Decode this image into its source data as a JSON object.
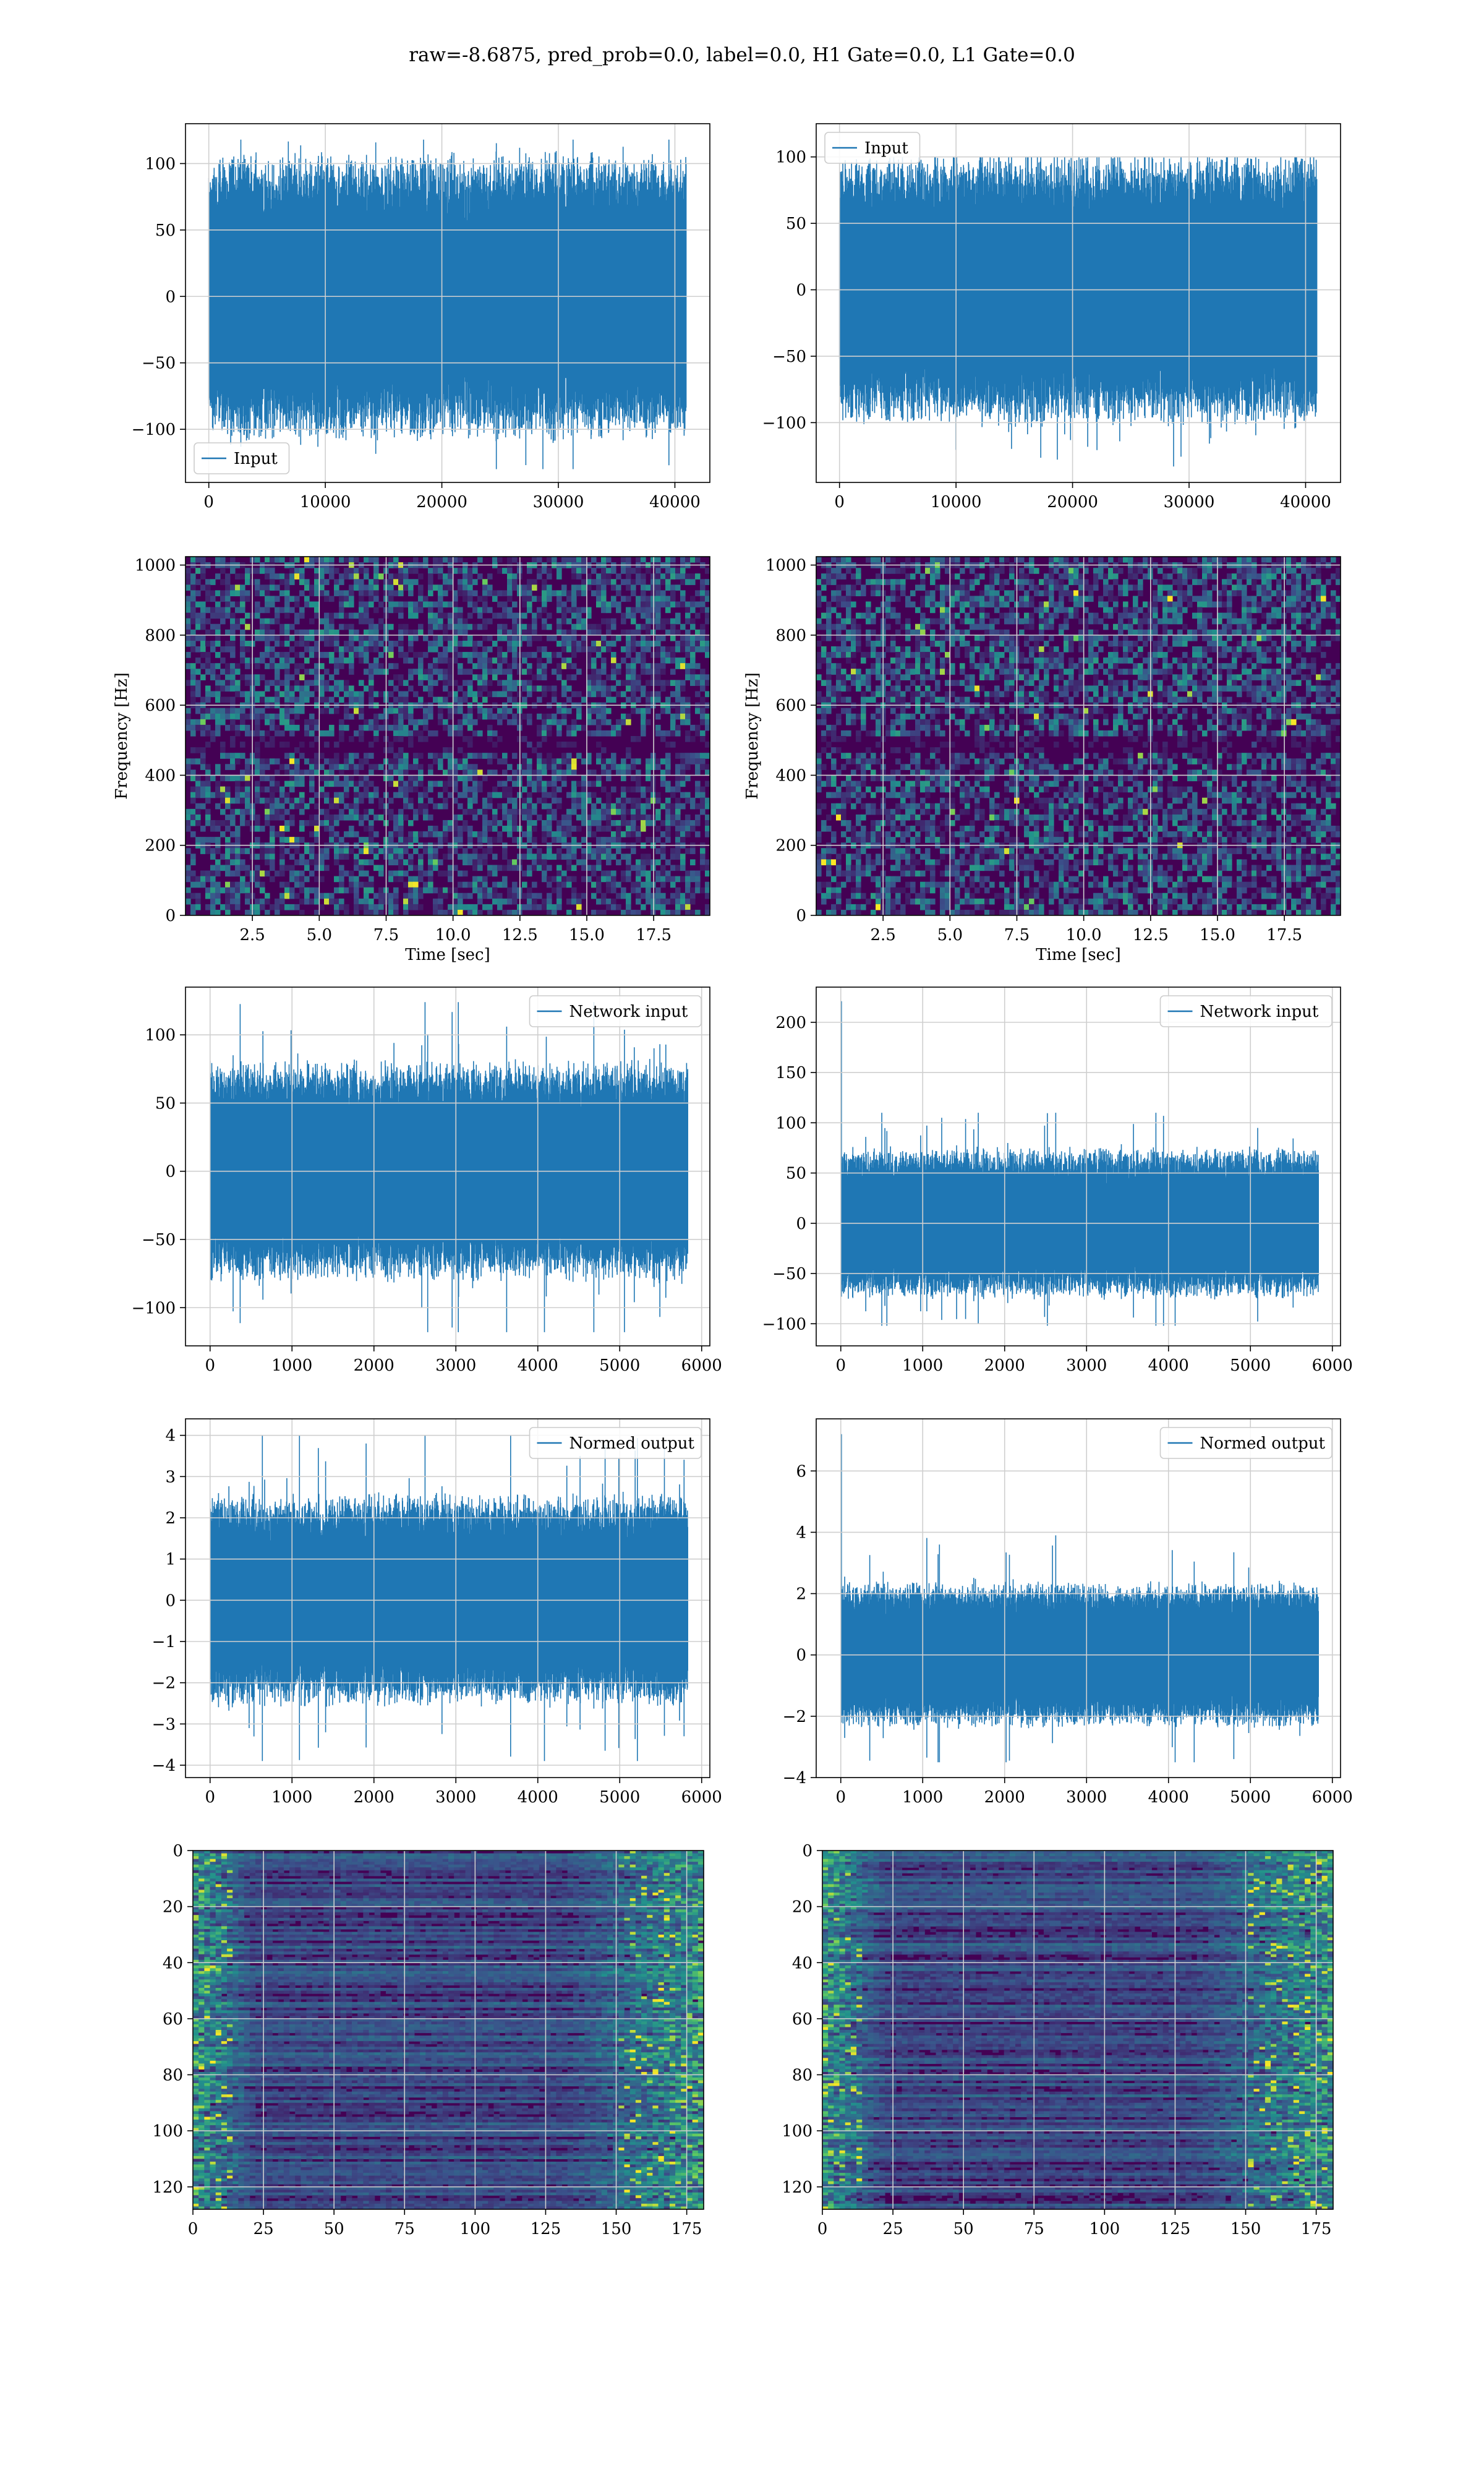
{
  "figure": {
    "title": "raw=-8.6875, pred_prob=0.0, label=0.0, H1 Gate=0.0, L1 Gate=0.0"
  },
  "colors": {
    "line": "#1f77b4",
    "grid": "#cfcfcf",
    "axes": "#000000",
    "viridis_dark": "#440154",
    "viridis_mid": "#21918c",
    "viridis_bright": "#fde725"
  },
  "chart_data": [
    {
      "id": "left-input",
      "type": "line",
      "title": "",
      "xlabel": "",
      "ylabel": "",
      "xlim": [
        -2000,
        43000
      ],
      "ylim": [
        -140,
        130
      ],
      "xticks": [
        0,
        10000,
        20000,
        30000,
        40000
      ],
      "yticks": [
        -100,
        -50,
        0,
        50,
        100
      ],
      "legend": {
        "label": "Input",
        "position": "lower-left"
      },
      "series": {
        "n": 40960,
        "x_start": 0,
        "x_end": 40960,
        "envelope": 100,
        "peak_max": 118,
        "peak_min": -130,
        "start_spike": null
      }
    },
    {
      "id": "right-input",
      "type": "line",
      "title": "",
      "xlabel": "",
      "ylabel": "",
      "xlim": [
        -2000,
        43000
      ],
      "ylim": [
        -145,
        125
      ],
      "xticks": [
        0,
        10000,
        20000,
        30000,
        40000
      ],
      "yticks": [
        -100,
        -50,
        0,
        50,
        100
      ],
      "legend": {
        "label": "Input",
        "position": "upper-left"
      },
      "series": {
        "n": 40960,
        "x_start": 0,
        "x_end": 40960,
        "envelope": 95,
        "peak_max": 100,
        "peak_min": -133,
        "start_spike": null
      }
    },
    {
      "id": "left-spectrogram",
      "type": "heatmap",
      "title": "",
      "xlabel": "Time [sec]",
      "ylabel": "Frequency [Hz]",
      "xlim": [
        0,
        19.6
      ],
      "ylim": [
        0,
        1024
      ],
      "xticks": [
        2.5,
        5.0,
        7.5,
        10.0,
        12.5,
        15.0,
        17.5
      ],
      "xtick_labels": [
        "2.5",
        "5.0",
        "7.5",
        "10.0",
        "12.5",
        "15.0",
        "17.5"
      ],
      "yticks": [
        0,
        200,
        400,
        600,
        800,
        1000
      ],
      "colormap": "viridis",
      "dark_band_hz": [
        470,
        520
      ]
    },
    {
      "id": "right-spectrogram",
      "type": "heatmap",
      "title": "",
      "xlabel": "Time [sec]",
      "ylabel": "Frequency [Hz]",
      "xlim": [
        0,
        19.6
      ],
      "ylim": [
        0,
        1024
      ],
      "xticks": [
        2.5,
        5.0,
        7.5,
        10.0,
        12.5,
        15.0,
        17.5
      ],
      "xtick_labels": [
        "2.5",
        "5.0",
        "7.5",
        "10.0",
        "12.5",
        "15.0",
        "17.5"
      ],
      "yticks": [
        0,
        200,
        400,
        600,
        800,
        1000
      ],
      "colormap": "viridis",
      "dark_band_hz": [
        470,
        520
      ]
    },
    {
      "id": "left-network-input",
      "type": "line",
      "title": "",
      "xlabel": "",
      "ylabel": "",
      "xlim": [
        -300,
        6100
      ],
      "ylim": [
        -128,
        135
      ],
      "xticks": [
        0,
        1000,
        2000,
        3000,
        4000,
        5000,
        6000
      ],
      "yticks": [
        -100,
        -50,
        0,
        50,
        100
      ],
      "legend": {
        "label": "Network input",
        "position": "upper-right"
      },
      "series": {
        "n": 5800,
        "x_start": 0,
        "x_end": 5830,
        "envelope": 75,
        "peak_max": 124,
        "peak_min": -118,
        "start_spike": null
      }
    },
    {
      "id": "right-network-input",
      "type": "line",
      "title": "",
      "xlabel": "",
      "ylabel": "",
      "xlim": [
        -300,
        6100
      ],
      "ylim": [
        -122,
        235
      ],
      "xticks": [
        0,
        1000,
        2000,
        3000,
        4000,
        5000,
        6000
      ],
      "yticks": [
        -100,
        -50,
        0,
        50,
        100,
        150,
        200
      ],
      "legend": {
        "label": "Network input",
        "position": "upper-right"
      },
      "series": {
        "n": 5800,
        "x_start": 0,
        "x_end": 5830,
        "envelope": 70,
        "peak_max": 110,
        "peak_min": -102,
        "start_spike": 221
      }
    },
    {
      "id": "left-normed-output",
      "type": "line",
      "title": "",
      "xlabel": "",
      "ylabel": "",
      "xlim": [
        -300,
        6100
      ],
      "ylim": [
        -4.3,
        4.4
      ],
      "xticks": [
        0,
        1000,
        2000,
        3000,
        4000,
        5000,
        6000
      ],
      "yticks": [
        -4,
        -3,
        -2,
        -1,
        0,
        1,
        2,
        3,
        4
      ],
      "legend": {
        "label": "Normed output",
        "position": "upper-right"
      },
      "series": {
        "n": 5800,
        "x_start": 0,
        "x_end": 5830,
        "envelope": 2.4,
        "peak_max": 4.0,
        "peak_min": -3.9,
        "start_spike": null
      }
    },
    {
      "id": "right-normed-output",
      "type": "line",
      "title": "",
      "xlabel": "",
      "ylabel": "",
      "xlim": [
        -300,
        6100
      ],
      "ylim": [
        -4.0,
        7.7
      ],
      "xticks": [
        0,
        1000,
        2000,
        3000,
        4000,
        5000,
        6000
      ],
      "yticks": [
        -4,
        -2,
        0,
        2,
        4,
        6
      ],
      "legend": {
        "label": "Normed output",
        "position": "upper-right"
      },
      "series": {
        "n": 5800,
        "x_start": 0,
        "x_end": 5830,
        "envelope": 2.2,
        "peak_max": 3.9,
        "peak_min": -3.5,
        "start_spike": 7.2
      }
    },
    {
      "id": "left-activations",
      "type": "heatmap",
      "title": "",
      "xlabel": "",
      "ylabel": "",
      "xlim": [
        0,
        181
      ],
      "ylim": [
        128,
        0
      ],
      "xticks": [
        0,
        25,
        50,
        75,
        100,
        125,
        150,
        175
      ],
      "xtick_labels": [
        "0",
        "25",
        "50",
        "75",
        "100",
        "125",
        "150",
        "175"
      ],
      "yticks": [
        0,
        20,
        40,
        60,
        80,
        100,
        120
      ],
      "colormap": "viridis"
    },
    {
      "id": "right-activations",
      "type": "heatmap",
      "title": "",
      "xlabel": "",
      "ylabel": "",
      "xlim": [
        0,
        181
      ],
      "ylim": [
        128,
        0
      ],
      "xticks": [
        0,
        25,
        50,
        75,
        100,
        125,
        150,
        175
      ],
      "xtick_labels": [
        "0",
        "25",
        "50",
        "75",
        "100",
        "125",
        "150",
        "175"
      ],
      "yticks": [
        0,
        20,
        40,
        60,
        80,
        100,
        120
      ],
      "colormap": "viridis"
    }
  ]
}
